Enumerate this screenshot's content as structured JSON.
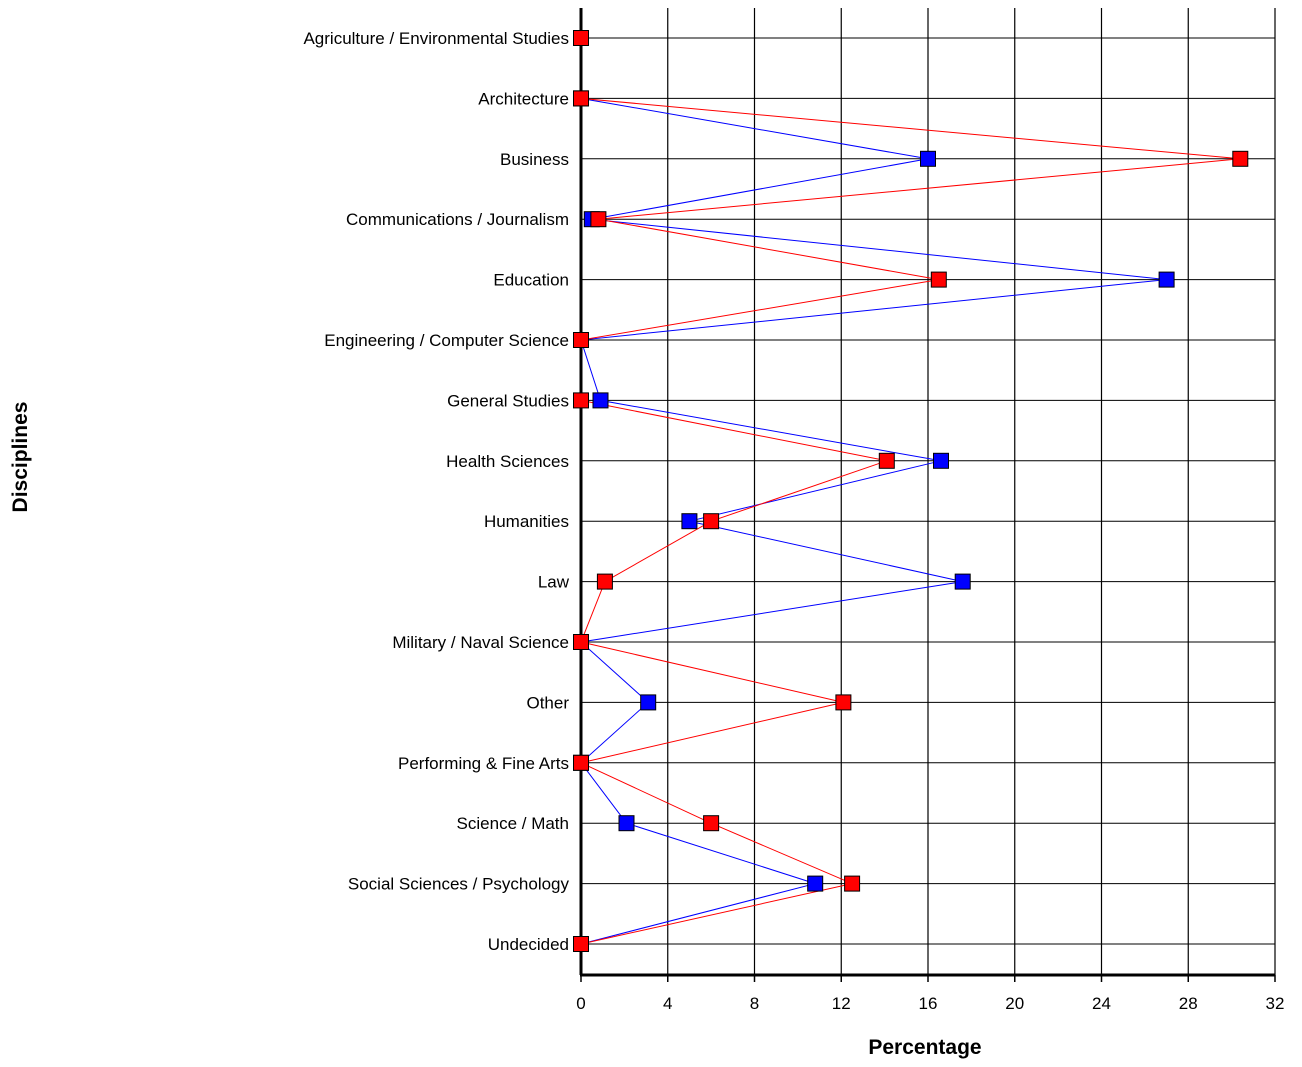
{
  "chart_data": {
    "type": "line",
    "orientation": "horizontal",
    "xlabel": "Percentage",
    "ylabel": "Disciplines",
    "xlim": [
      0,
      32
    ],
    "x_ticks": [
      0,
      4,
      8,
      12,
      16,
      20,
      24,
      28,
      32
    ],
    "grid": true,
    "legend": "none",
    "categories": [
      "Agriculture / Environmental Studies",
      "Architecture",
      "Business",
      "Communications / Journalism",
      "Education",
      "Engineering / Computer Science",
      "General Studies",
      "Health Sciences",
      "Humanities",
      "Law",
      "Military / Naval Science",
      "Other",
      "Performing & Fine Arts",
      "Science / Math",
      "Social Sciences / Psychology",
      "Undecided"
    ],
    "series": [
      {
        "color": "#0000ff",
        "values": [
          0,
          0,
          16.0,
          0.5,
          27.0,
          0,
          0.9,
          16.6,
          5.0,
          17.6,
          0,
          3.1,
          0,
          2.1,
          10.8,
          0
        ]
      },
      {
        "color": "#ff0000",
        "values": [
          0,
          0,
          30.4,
          0.8,
          16.5,
          0,
          0,
          14.1,
          6.0,
          1.1,
          0,
          12.1,
          0,
          6.0,
          12.5,
          0
        ]
      }
    ]
  }
}
